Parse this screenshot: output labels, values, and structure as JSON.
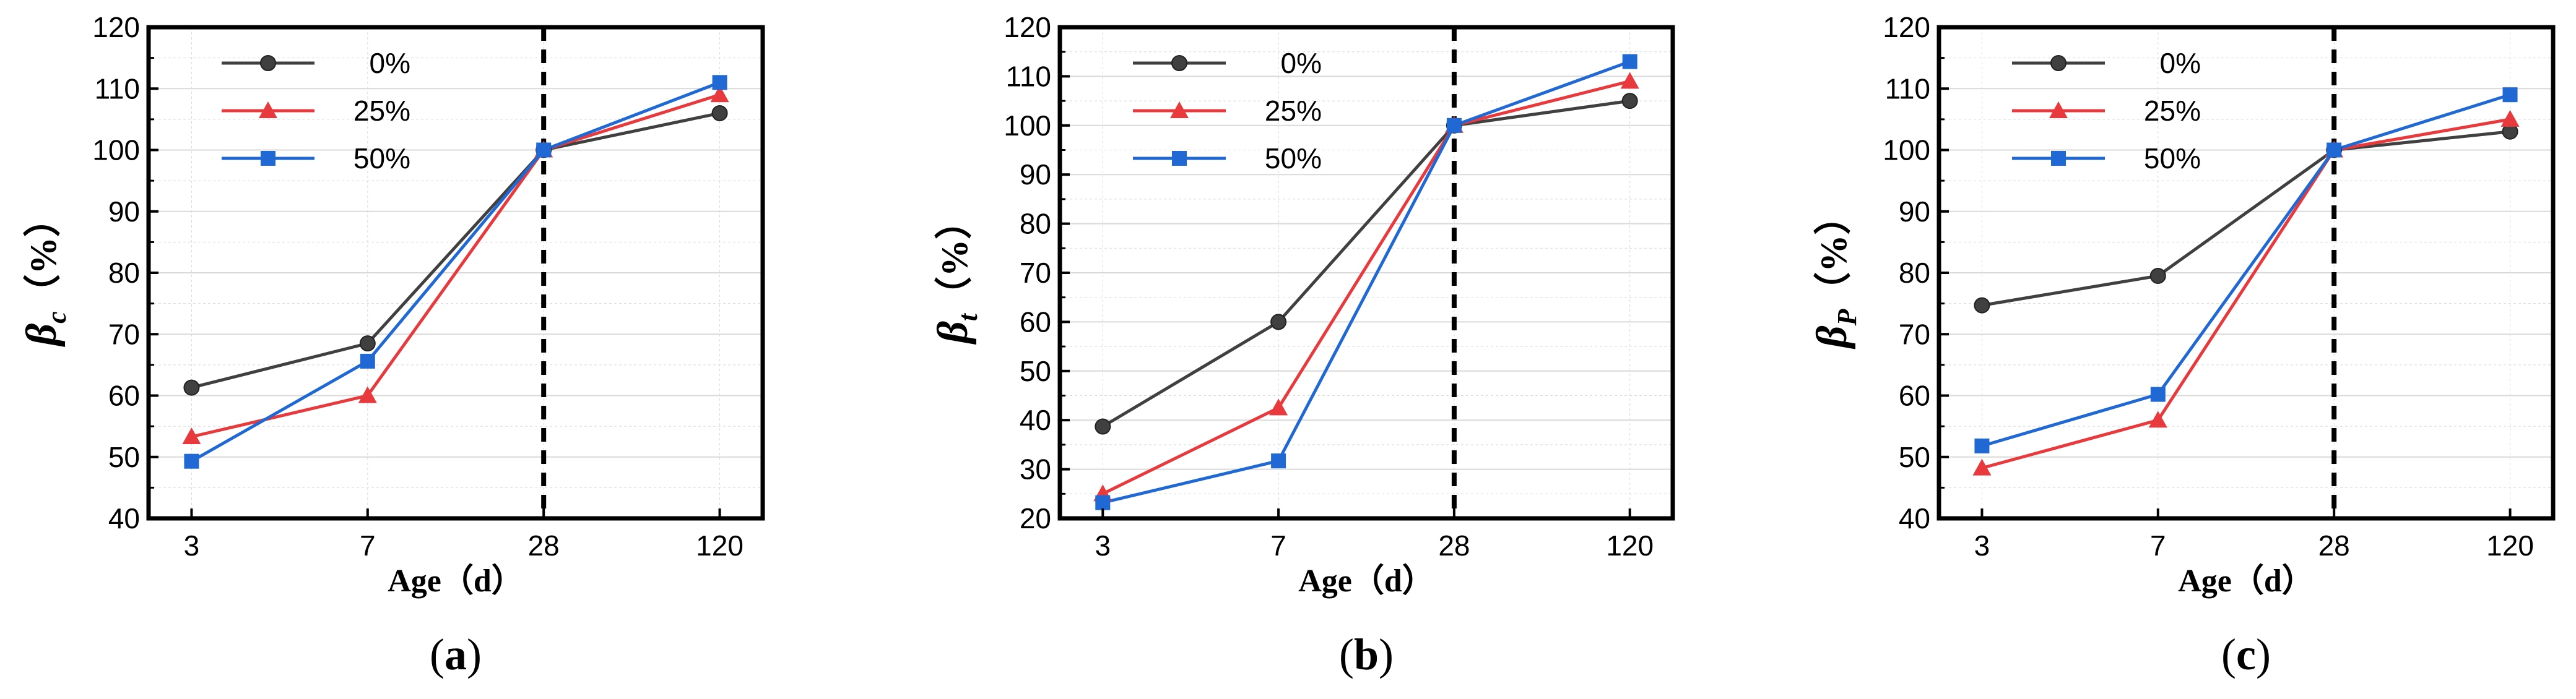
{
  "chart_data": [
    {
      "type": "line",
      "panel": "(a)",
      "panel_letter": "a",
      "xlabel": "Age（d）",
      "ylabel_symbol": "β",
      "ylabel_subscript": "c",
      "ylabel_unit": "（%）",
      "categories": [
        "3",
        "7",
        "28",
        "120"
      ],
      "ylim": [
        40,
        120
      ],
      "yticks": [
        40,
        50,
        60,
        70,
        80,
        90,
        100,
        110,
        120
      ],
      "reference_line_at": "28",
      "series": [
        {
          "name": "0%",
          "values": [
            61.3,
            68.5,
            100,
            106
          ]
        },
        {
          "name": "25%",
          "values": [
            53.3,
            60,
            100,
            109
          ]
        },
        {
          "name": "50%",
          "values": [
            49.3,
            65.6,
            100,
            111
          ]
        }
      ]
    },
    {
      "type": "line",
      "panel": "(b)",
      "panel_letter": "b",
      "xlabel": "Age（d）",
      "ylabel_symbol": "β",
      "ylabel_subscript": "t",
      "ylabel_unit": "（%）",
      "categories": [
        "3",
        "7",
        "28",
        "120"
      ],
      "ylim": [
        20,
        120
      ],
      "yticks": [
        20,
        30,
        40,
        50,
        60,
        70,
        80,
        90,
        100,
        110,
        120
      ],
      "reference_line_at": "28",
      "series": [
        {
          "name": "0%",
          "values": [
            38.7,
            60,
            100,
            105
          ]
        },
        {
          "name": "25%",
          "values": [
            25,
            42.5,
            100,
            109
          ]
        },
        {
          "name": "50%",
          "values": [
            23.2,
            31.7,
            100,
            113
          ]
        }
      ]
    },
    {
      "type": "line",
      "panel": "(c)",
      "panel_letter": "c",
      "xlabel": "Age（d）",
      "ylabel_symbol": "β",
      "ylabel_subscript": "P",
      "ylabel_unit": "（%）",
      "categories": [
        "3",
        "7",
        "28",
        "120"
      ],
      "ylim": [
        40,
        120
      ],
      "yticks": [
        40,
        50,
        60,
        70,
        80,
        90,
        100,
        110,
        120
      ],
      "reference_line_at": "28",
      "series": [
        {
          "name": "0%",
          "values": [
            74.7,
            79.5,
            100,
            103
          ]
        },
        {
          "name": "25%",
          "values": [
            48.2,
            56,
            100,
            105
          ]
        },
        {
          "name": "50%",
          "values": [
            51.8,
            60.2,
            100,
            109
          ]
        }
      ]
    }
  ],
  "colors": {
    "series_0": "#404040",
    "series_1": "#e8393c",
    "series_2": "#2068d4",
    "grid": "#d9d9d9",
    "axis": "#000000"
  }
}
